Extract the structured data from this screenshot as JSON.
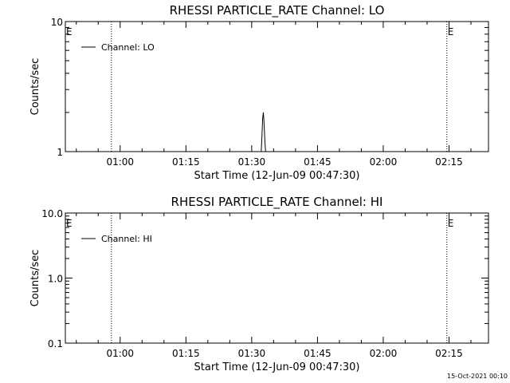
{
  "chart_data": [
    {
      "type": "line",
      "title": "RHESSI PARTICLE_RATE Channel: LO",
      "xlabel": "Start Time (12-Jun-09 00:47:30)",
      "ylabel": "Counts/sec",
      "yscale": "log",
      "ylim": [
        1,
        10
      ],
      "xlim": [
        "00:47:30",
        "02:24:00"
      ],
      "y_ticks": [
        "1",
        "10"
      ],
      "x_ticks": [
        "01:00",
        "01:15",
        "01:30",
        "01:45",
        "02:00",
        "02:15"
      ],
      "legend": [
        "Channel: LO"
      ],
      "legend_position": "top-left",
      "markers": [
        {
          "time": "00:58:00",
          "label": ""
        },
        {
          "time": "02:14:30",
          "label": "E"
        },
        {
          "time": "02:24:00",
          "label": ""
        }
      ],
      "edge_label": "E",
      "series": [
        {
          "name": "Channel: LO",
          "x": [
            "01:32:10",
            "01:32:20",
            "01:32:30",
            "01:32:40",
            "01:32:50",
            "01:33:00",
            "01:33:10"
          ],
          "values": [
            1,
            1.3,
            1.8,
            2.0,
            1.6,
            1.2,
            1
          ]
        }
      ]
    },
    {
      "type": "line",
      "title": "RHESSI PARTICLE_RATE Channel: HI",
      "xlabel": "Start Time (12-Jun-09 00:47:30)",
      "ylabel": "Counts/sec",
      "yscale": "log",
      "ylim": [
        0.1,
        10
      ],
      "xlim": [
        "00:47:30",
        "02:24:00"
      ],
      "y_ticks": [
        "0.1",
        "1.0",
        "10.0"
      ],
      "x_ticks": [
        "01:00",
        "01:15",
        "01:30",
        "01:45",
        "02:00",
        "02:15"
      ],
      "legend": [
        "Channel: HI"
      ],
      "legend_position": "top-left",
      "markers": [
        {
          "time": "00:58:00",
          "label": ""
        },
        {
          "time": "02:14:30",
          "label": "E"
        },
        {
          "time": "02:24:00",
          "label": ""
        }
      ],
      "edge_label": "E",
      "series": [
        {
          "name": "Channel: HI",
          "x": [],
          "values": []
        }
      ]
    }
  ],
  "footer": {
    "timestamp": "15-Oct-2021 00:10"
  }
}
